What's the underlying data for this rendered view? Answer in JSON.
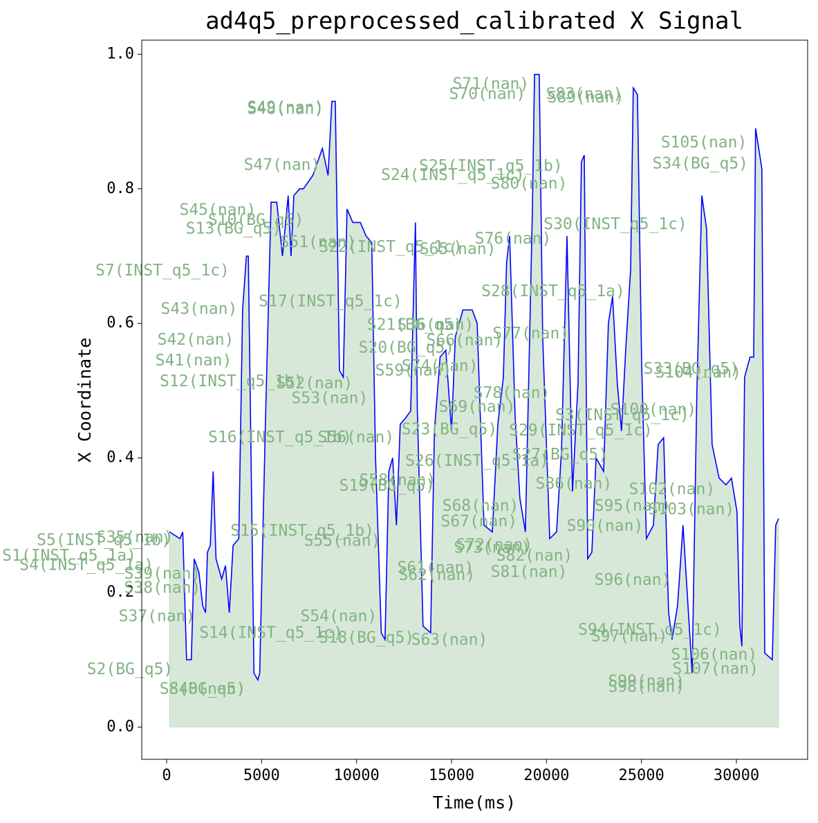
{
  "chart_data": {
    "type": "line",
    "title": "ad4q5_preprocessed_calibrated X Signal",
    "x_label": "Time(ms)",
    "y_label": "X Coordinate",
    "xlim": [
      -1310,
      33750
    ],
    "ylim": [
      -0.048,
      1.021
    ],
    "xticks": [
      0,
      5000,
      10000,
      15000,
      20000,
      25000,
      30000
    ],
    "yticks": [
      {
        "value": 0,
        "label": "0.0"
      },
      0.2,
      0.4,
      0.6,
      0.8,
      {
        "value": 1,
        "label": "1.0"
      }
    ],
    "color": "#0000ff",
    "fill_color": "#8fbc8f",
    "x": [
      150,
      700,
      850,
      1050,
      1300,
      1450,
      1700,
      1900,
      2050,
      2150,
      2300,
      2450,
      2600,
      2900,
      3100,
      3300,
      3500,
      3800,
      4000,
      4200,
      4300,
      4600,
      4800,
      4900,
      5200,
      5500,
      5800,
      6100,
      6400,
      6550,
      6700,
      7000,
      7200,
      7700,
      8200,
      8500,
      8700,
      8880,
      9100,
      9300,
      9500,
      9800,
      10200,
      10500,
      10800,
      11000,
      11300,
      11500,
      11700,
      11900,
      12100,
      12300,
      12600,
      12850,
      13100,
      13200,
      13500,
      13900,
      14100,
      14400,
      14700,
      15000,
      15200,
      15600,
      16090,
      16350,
      16710,
      17150,
      17440,
      17730,
      17900,
      18060,
      18350,
      18600,
      18890,
      19260,
      19370,
      19620,
      19800,
      20170,
      20530,
      20790,
      21080,
      21370,
      21660,
      21840,
      21990,
      22170,
      22390,
      22610,
      23010,
      23260,
      23480,
      23730,
      23950,
      24170,
      24430,
      24570,
      24790,
      25010,
      25260,
      25630,
      25880,
      26170,
      26430,
      26610,
      26900,
      27190,
      27670,
      27920,
      28180,
      28430,
      28720,
      29090,
      29450,
      29740,
      30030,
      30180,
      30290,
      30430,
      30720,
      30910,
      31010,
      31340,
      31490,
      31890,
      32070,
      32220
    ],
    "values": [
      0.29,
      0.28,
      0.29,
      0.1,
      0.1,
      0.25,
      0.23,
      0.18,
      0.17,
      0.26,
      0.27,
      0.38,
      0.25,
      0.22,
      0.24,
      0.17,
      0.27,
      0.28,
      0.62,
      0.7,
      0.7,
      0.08,
      0.07,
      0.08,
      0.45,
      0.78,
      0.78,
      0.7,
      0.79,
      0.7,
      0.79,
      0.8,
      0.8,
      0.82,
      0.86,
      0.82,
      0.93,
      0.93,
      0.53,
      0.52,
      0.77,
      0.75,
      0.75,
      0.73,
      0.72,
      0.4,
      0.14,
      0.13,
      0.38,
      0.4,
      0.3,
      0.45,
      0.46,
      0.47,
      0.75,
      0.47,
      0.15,
      0.14,
      0.44,
      0.55,
      0.56,
      0.44,
      0.58,
      0.62,
      0.62,
      0.6,
      0.3,
      0.29,
      0.45,
      0.52,
      0.69,
      0.73,
      0.46,
      0.34,
      0.29,
      0.77,
      0.97,
      0.97,
      0.58,
      0.28,
      0.29,
      0.41,
      0.73,
      0.35,
      0.51,
      0.84,
      0.85,
      0.25,
      0.26,
      0.4,
      0.38,
      0.6,
      0.64,
      0.51,
      0.44,
      0.56,
      0.68,
      0.95,
      0.94,
      0.54,
      0.28,
      0.3,
      0.42,
      0.43,
      0.17,
      0.13,
      0.18,
      0.3,
      0.08,
      0.5,
      0.79,
      0.74,
      0.42,
      0.37,
      0.36,
      0.37,
      0.32,
      0.15,
      0.12,
      0.52,
      0.55,
      0.55,
      0.89,
      0.83,
      0.11,
      0.1,
      0.3,
      0.31
    ],
    "annotation_color": "#82b383",
    "annotations": [
      {
        "text": "S49(nan)",
        "x": 6260,
        "y": 0.92
      },
      {
        "text": "S48(nan)",
        "x": 6260,
        "y": 0.918
      },
      {
        "text": "S71(nan)",
        "x": 17070,
        "y": 0.955
      },
      {
        "text": "S70(nan)",
        "x": 16890,
        "y": 0.94
      },
      {
        "text": "S83(nan)",
        "x": 21990,
        "y": 0.94
      },
      {
        "text": "S89(nan)",
        "x": 22060,
        "y": 0.935
      },
      {
        "text": "S47(nan)",
        "x": 6080,
        "y": 0.835
      },
      {
        "text": "S25(INST_q5_1b)",
        "x": 17070,
        "y": 0.833
      },
      {
        "text": "S24(INST_q5_1c)",
        "x": 15070,
        "y": 0.82
      },
      {
        "text": "S80(nan)",
        "x": 19080,
        "y": 0.807
      },
      {
        "text": "S105(nan)",
        "x": 28290,
        "y": 0.868
      },
      {
        "text": "S34(BG_q5)",
        "x": 28100,
        "y": 0.837
      },
      {
        "text": "S45(nan)",
        "x": 2690,
        "y": 0.768
      },
      {
        "text": "S10(BG_q5)",
        "x": 4700,
        "y": 0.753
      },
      {
        "text": "S13(BG_q5)",
        "x": 3530,
        "y": 0.74
      },
      {
        "text": "S30(INST_q5_1c)",
        "x": 23630,
        "y": 0.747
      },
      {
        "text": "S51(nan)",
        "x": 7970,
        "y": 0.72
      },
      {
        "text": "S22(INST_q5_1c)",
        "x": 11800,
        "y": 0.713
      },
      {
        "text": "S65(nan)",
        "x": 15330,
        "y": 0.71
      },
      {
        "text": "S76(nan)",
        "x": 18240,
        "y": 0.725
      },
      {
        "text": "S7(INST_q5_1c)",
        "x": -220,
        "y": 0.678
      },
      {
        "text": "S43(nan)",
        "x": 1710,
        "y": 0.621
      },
      {
        "text": "S17(INST_q5_1c)",
        "x": 8630,
        "y": 0.632
      },
      {
        "text": "S28(INST_q5_1a)",
        "x": 20350,
        "y": 0.647
      },
      {
        "text": "S21(BG_q5)",
        "x": 13070,
        "y": 0.597
      },
      {
        "text": "S36(nan)",
        "x": 14160,
        "y": 0.597
      },
      {
        "text": "S77(nan)",
        "x": 19180,
        "y": 0.584
      },
      {
        "text": "S66(nan)",
        "x": 15690,
        "y": 0.574
      },
      {
        "text": "S42(nan)",
        "x": 1530,
        "y": 0.575
      },
      {
        "text": "S20(BG_q5)",
        "x": 12630,
        "y": 0.563
      },
      {
        "text": "S41(nan)",
        "x": 1420,
        "y": 0.544
      },
      {
        "text": "S59(nan)",
        "x": 13000,
        "y": 0.529
      },
      {
        "text": "S74(nan)",
        "x": 14390,
        "y": 0.536
      },
      {
        "text": "S33(BG_q5)",
        "x": 27630,
        "y": 0.532
      },
      {
        "text": "S104(nan)",
        "x": 27990,
        "y": 0.526
      },
      {
        "text": "S12(INST_q5_1b)",
        "x": 3420,
        "y": 0.513
      },
      {
        "text": "S52(nan)",
        "x": 7790,
        "y": 0.51
      },
      {
        "text": "S53(nan)",
        "x": 8590,
        "y": 0.488
      },
      {
        "text": "S78(nan)",
        "x": 18170,
        "y": 0.496
      },
      {
        "text": "S69(nan)",
        "x": 16350,
        "y": 0.475
      },
      {
        "text": "S100(nan)",
        "x": 25630,
        "y": 0.471
      },
      {
        "text": "S3(INST_q5_1c)",
        "x": 23990,
        "y": 0.463
      },
      {
        "text": "S16(INST_q5_1b)",
        "x": 5970,
        "y": 0.43
      },
      {
        "text": "S56(nan)",
        "x": 9970,
        "y": 0.43
      },
      {
        "text": "S23(BG_q5)",
        "x": 14890,
        "y": 0.442
      },
      {
        "text": "S29(INST_q5_1c)",
        "x": 21810,
        "y": 0.44
      },
      {
        "text": "S26(INST_q5_1a)",
        "x": 16350,
        "y": 0.395
      },
      {
        "text": "S27(BG_q5)",
        "x": 20710,
        "y": 0.404
      },
      {
        "text": "S86(nan)",
        "x": 21440,
        "y": 0.361
      },
      {
        "text": "S19(BG_q5)",
        "x": 11610,
        "y": 0.358
      },
      {
        "text": "S58(nan)",
        "x": 12160,
        "y": 0.366
      },
      {
        "text": "S102(nan)",
        "x": 26610,
        "y": 0.353
      },
      {
        "text": "S95(nan)",
        "x": 24540,
        "y": 0.328
      },
      {
        "text": "S103(nan)",
        "x": 27630,
        "y": 0.323
      },
      {
        "text": "S68(nan)",
        "x": 16530,
        "y": 0.328
      },
      {
        "text": "S67(nan)",
        "x": 16450,
        "y": 0.305
      },
      {
        "text": "S90(nan)",
        "x": 23080,
        "y": 0.298
      },
      {
        "text": "S35(nan)",
        "x": -1670,
        "y": 0.281
      },
      {
        "text": "S5(INST_q5_1b)",
        "x": -3310,
        "y": 0.277
      },
      {
        "text": "S15(INST_q5_1b)",
        "x": 7140,
        "y": 0.291
      },
      {
        "text": "S55(nan)",
        "x": 9250,
        "y": 0.276
      },
      {
        "text": "S72(nan)",
        "x": 17250,
        "y": 0.27
      },
      {
        "text": "S73(nan)",
        "x": 17140,
        "y": 0.266
      },
      {
        "text": "S82(nan)",
        "x": 19370,
        "y": 0.254
      },
      {
        "text": "S81(nan)",
        "x": 19080,
        "y": 0.23
      },
      {
        "text": "S61(nan)",
        "x": 14160,
        "y": 0.236
      },
      {
        "text": "S62(nan)",
        "x": 14230,
        "y": 0.225
      },
      {
        "text": "S1(INST_q5_1a)",
        "x": -5130,
        "y": 0.254
      },
      {
        "text": "S4(INST_q5_1a)",
        "x": -4220,
        "y": 0.24
      },
      {
        "text": "S39(nan)",
        "x": -220,
        "y": 0.227
      },
      {
        "text": "S38(nan)",
        "x": -220,
        "y": 0.206
      },
      {
        "text": "S96(nan)",
        "x": 24540,
        "y": 0.218
      },
      {
        "text": "S37(nan)",
        "x": -510,
        "y": 0.164
      },
      {
        "text": "S54(nan)",
        "x": 9060,
        "y": 0.164
      },
      {
        "text": "S14(INST_q5_1c)",
        "x": 5500,
        "y": 0.139
      },
      {
        "text": "S18(BG_q5)",
        "x": 10520,
        "y": 0.132
      },
      {
        "text": "S63(nan)",
        "x": 14890,
        "y": 0.129
      },
      {
        "text": "S94(INST_q5_1c)",
        "x": 25450,
        "y": 0.144
      },
      {
        "text": "S97(nan)",
        "x": 24360,
        "y": 0.134
      },
      {
        "text": "S106(nan)",
        "x": 28830,
        "y": 0.107
      },
      {
        "text": "S107(nan)",
        "x": 28900,
        "y": 0.086
      },
      {
        "text": "S2(BG_q5)",
        "x": -1930,
        "y": 0.085
      },
      {
        "text": "S8(BG_q5)",
        "x": 1890,
        "y": 0.056
      },
      {
        "text": "S40(nan)",
        "x": 2150,
        "y": 0.056
      },
      {
        "text": "S99(nan)",
        "x": 25260,
        "y": 0.067
      },
      {
        "text": "S98(nan)",
        "x": 25260,
        "y": 0.059
      }
    ]
  }
}
